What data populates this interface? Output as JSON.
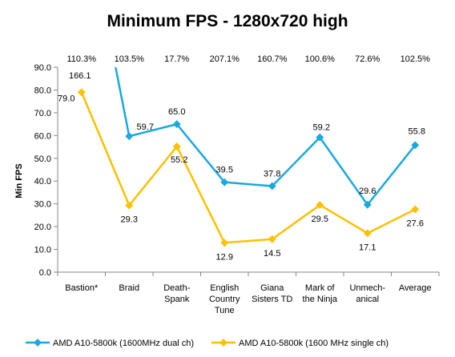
{
  "chart_data": {
    "type": "line",
    "title": "Minimum FPS - 1280x720 high",
    "xlabel": "",
    "ylabel": "Min FPS",
    "ylim": [
      0,
      90
    ],
    "yticks": [
      "0.0",
      "10.0",
      "20.0",
      "30.0",
      "40.0",
      "50.0",
      "60.0",
      "70.0",
      "80.0",
      "90.0"
    ],
    "grid": false,
    "legend_position": "bottom",
    "categories": [
      [
        "Bastion*"
      ],
      [
        "Braid"
      ],
      [
        "Death-",
        "Spank"
      ],
      [
        "English",
        "Country",
        "Tune"
      ],
      [
        "Giana",
        "Sisters TD"
      ],
      [
        "Mark of",
        "the Ninja"
      ],
      [
        "Unmech-",
        "anical"
      ],
      [
        "Average"
      ]
    ],
    "percent_labels": [
      "110.3%",
      "103.5%",
      "17.7%",
      "207.1%",
      "160.7%",
      "100.6%",
      "72.6%",
      "102.5%"
    ],
    "series": [
      {
        "name": "AMD A10-5800k (1600MHz dual ch)",
        "color": "#1AA8E0",
        "values": [
          166.1,
          59.7,
          65.0,
          39.5,
          37.8,
          59.2,
          29.6,
          55.8
        ],
        "labels": [
          "166.1",
          "59.7",
          "65.0",
          "39.5",
          "37.8",
          "59.2",
          "29.6",
          "55.8"
        ]
      },
      {
        "name": "AMD A10-5800k (1600 MHz single ch)",
        "color": "#FFC000",
        "values": [
          79.0,
          29.3,
          55.2,
          12.9,
          14.5,
          29.5,
          17.1,
          27.6
        ],
        "labels": [
          "79.0",
          "29.3",
          "55.2",
          "12.9",
          "14.5",
          "29.5",
          "17.1",
          "27.6"
        ]
      }
    ]
  }
}
